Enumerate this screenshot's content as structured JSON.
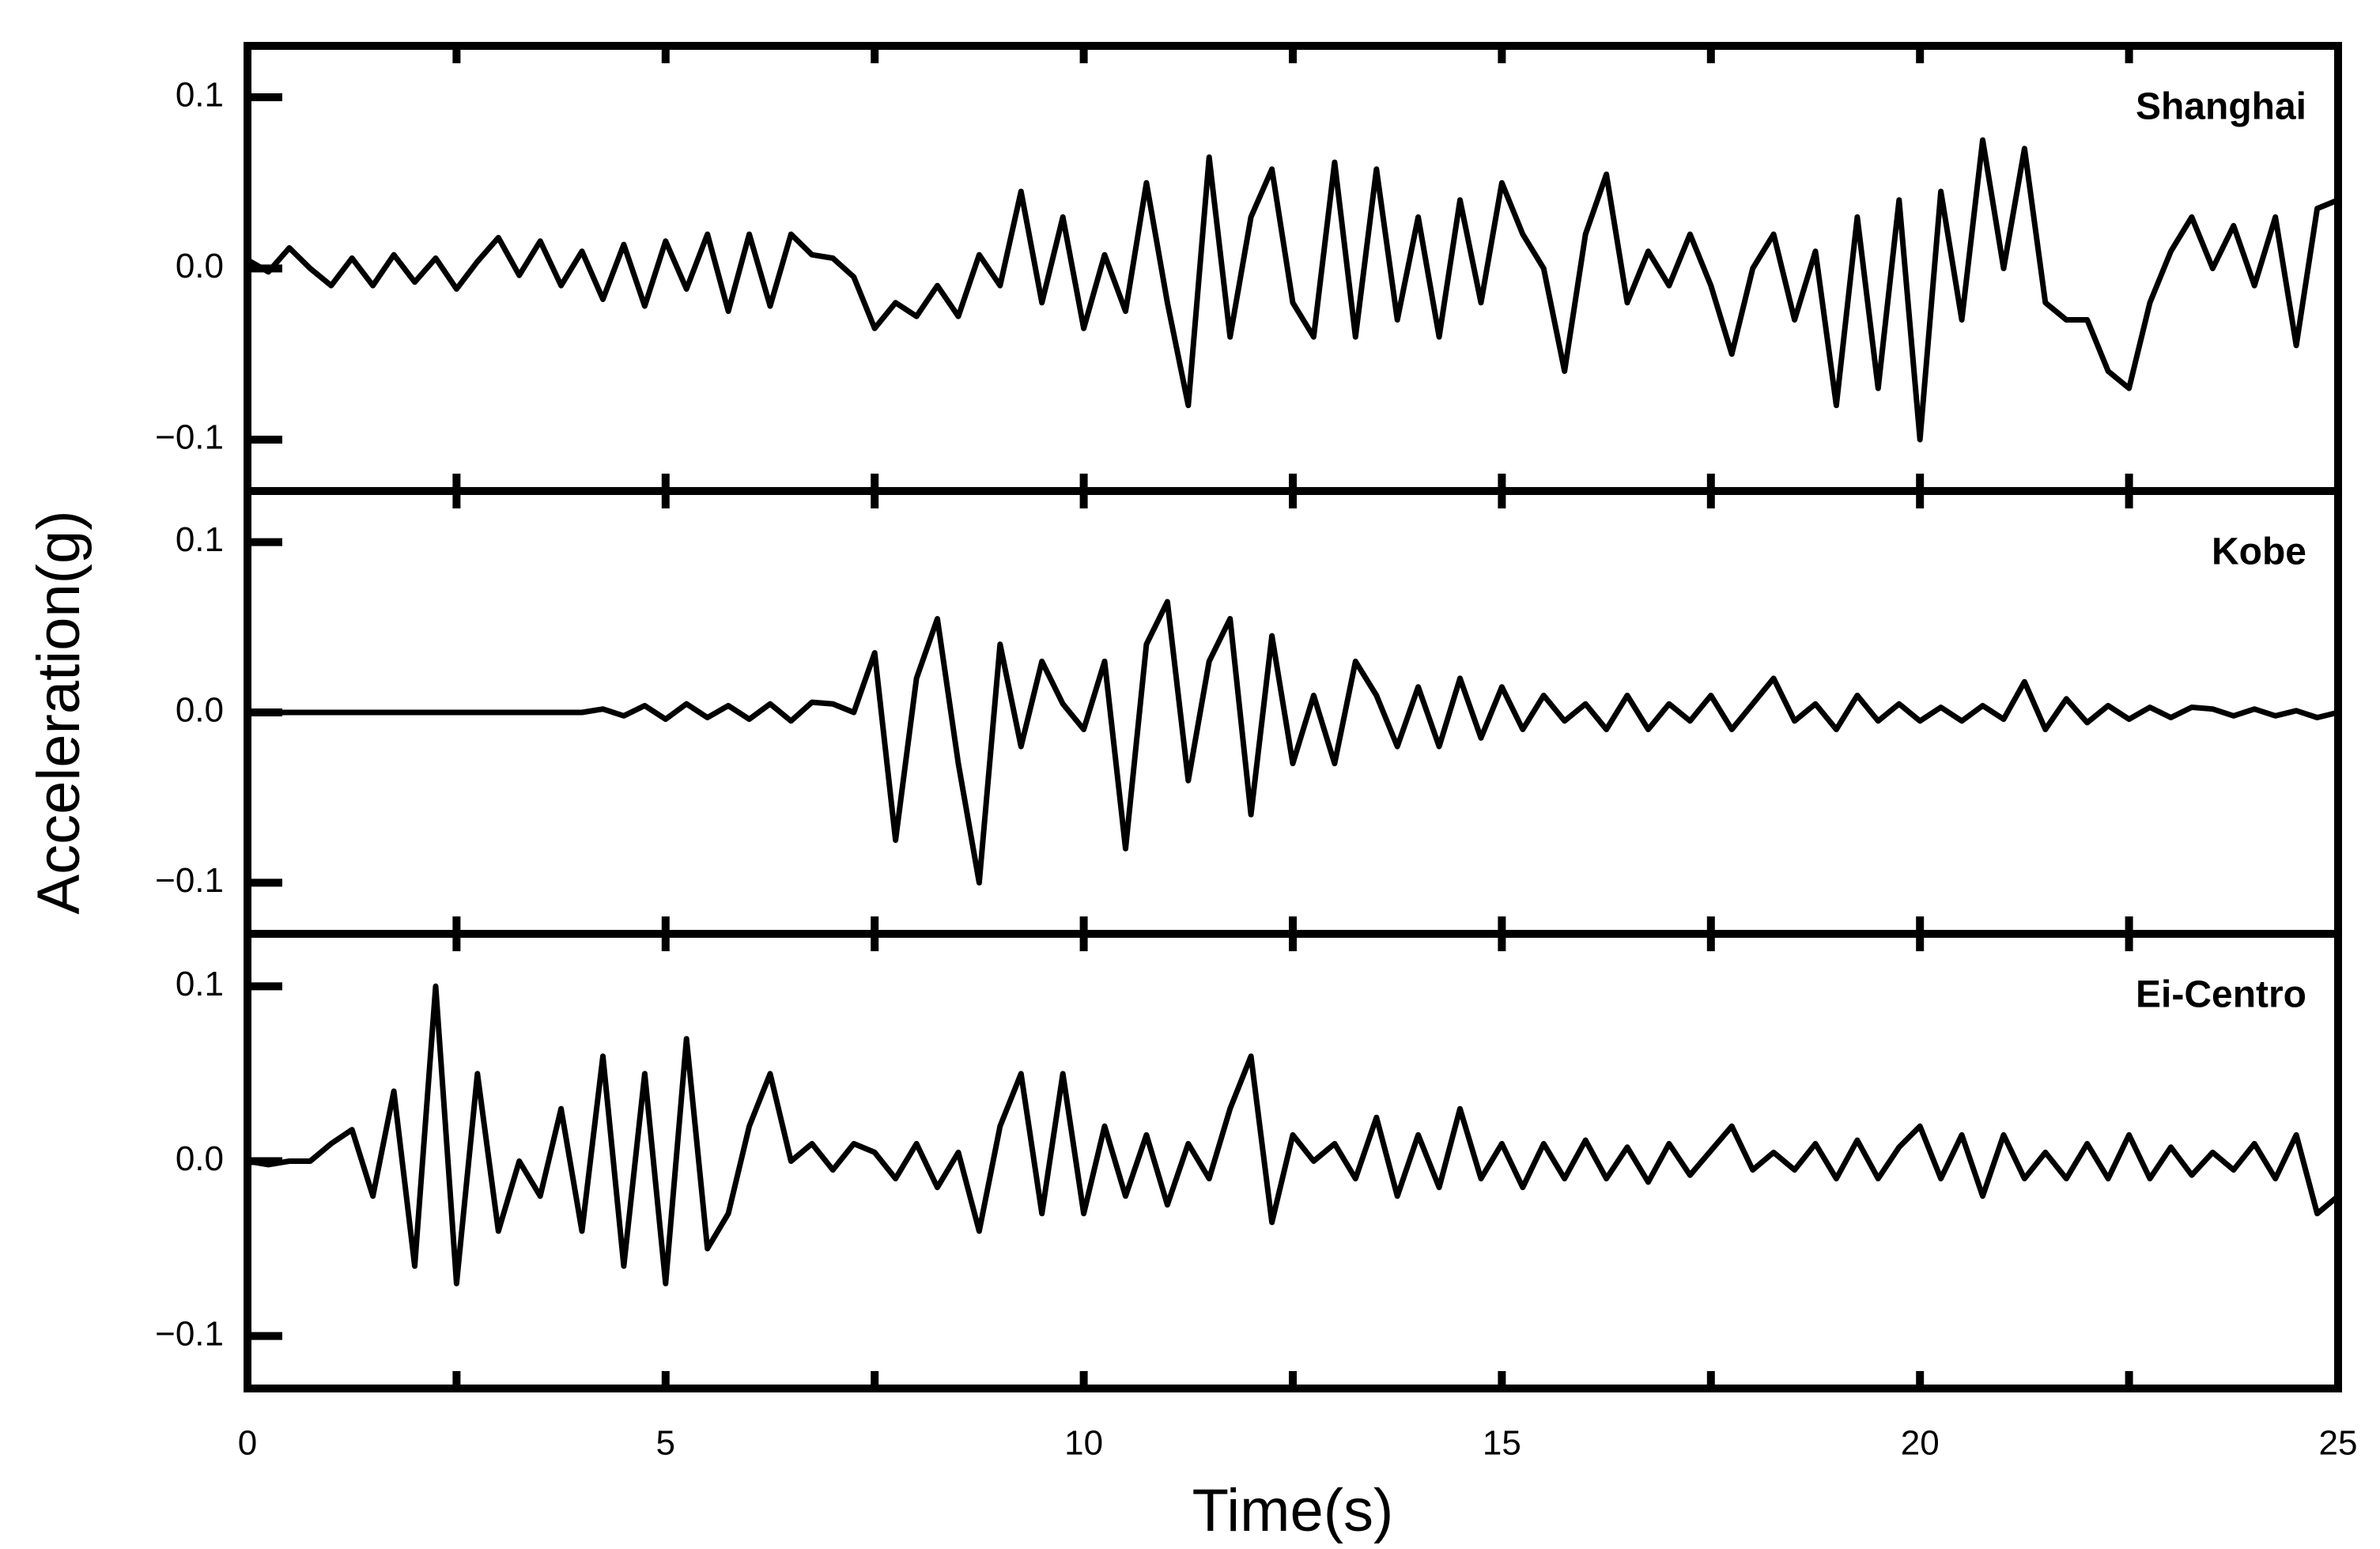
{
  "chart_data": [
    {
      "type": "line",
      "title": "Shanghai",
      "x": [
        0,
        0.25,
        0.5,
        0.75,
        1,
        1.25,
        1.5,
        1.75,
        2,
        2.25,
        2.5,
        2.75,
        3,
        3.25,
        3.5,
        3.75,
        4,
        4.25,
        4.5,
        4.75,
        5,
        5.25,
        5.5,
        5.75,
        6,
        6.25,
        6.5,
        6.75,
        7,
        7.25,
        7.5,
        7.75,
        8,
        8.25,
        8.5,
        8.75,
        9,
        9.25,
        9.5,
        9.75,
        10,
        10.25,
        10.5,
        10.75,
        11,
        11.25,
        11.5,
        11.75,
        12,
        12.25,
        12.5,
        12.75,
        13,
        13.25,
        13.5,
        13.75,
        14,
        14.25,
        14.5,
        14.75,
        15,
        15.25,
        15.5,
        15.75,
        16,
        16.25,
        16.5,
        16.75,
        17,
        17.25,
        17.5,
        17.75,
        18,
        18.25,
        18.5,
        18.75,
        19,
        19.25,
        19.5,
        19.75,
        20,
        20.25,
        20.5,
        20.75,
        21,
        21.25,
        21.5,
        21.75,
        22,
        22.25,
        22.5,
        22.75,
        23,
        23.25,
        23.5,
        23.75,
        24,
        24.25,
        24.5,
        24.75,
        25
      ],
      "values": [
        0.005,
        -0.002,
        0.012,
        0.0,
        -0.01,
        0.006,
        -0.01,
        0.008,
        -0.008,
        0.006,
        -0.012,
        0.004,
        0.018,
        -0.004,
        0.016,
        -0.01,
        0.01,
        -0.018,
        0.014,
        -0.022,
        0.016,
        -0.012,
        0.02,
        -0.025,
        0.02,
        -0.022,
        0.02,
        0.008,
        0.006,
        -0.005,
        -0.035,
        -0.02,
        -0.028,
        -0.01,
        -0.028,
        0.008,
        -0.01,
        0.045,
        -0.02,
        0.03,
        -0.035,
        0.008,
        -0.025,
        0.05,
        -0.02,
        -0.08,
        0.065,
        -0.04,
        0.03,
        0.058,
        -0.02,
        -0.04,
        0.062,
        -0.04,
        0.058,
        -0.03,
        0.03,
        -0.04,
        0.04,
        -0.02,
        0.05,
        0.02,
        0.0,
        -0.06,
        0.02,
        0.055,
        -0.02,
        0.01,
        -0.01,
        0.02,
        -0.01,
        -0.05,
        0.0,
        0.02,
        -0.03,
        0.01,
        -0.08,
        0.03,
        -0.07,
        0.04,
        -0.1,
        0.045,
        -0.03,
        0.075,
        0.0,
        0.07,
        -0.02,
        -0.03,
        -0.03,
        -0.06,
        -0.07,
        -0.02,
        0.01,
        0.03,
        0.0,
        0.025,
        -0.01,
        0.03,
        -0.045,
        0.035,
        0.04
      ],
      "color": "#000000",
      "xlim": [
        0,
        25
      ],
      "xticks": [
        0,
        5,
        10,
        15,
        20,
        25
      ],
      "xminorticks": [
        2.5,
        7.5,
        12.5,
        17.5,
        22.5
      ],
      "ylim": [
        -0.13,
        0.13
      ],
      "yticks": [
        {
          "value": -0.1,
          "label": "−0.1"
        },
        {
          "value": 0,
          "label": "0.0"
        },
        0.1
      ]
    },
    {
      "type": "line",
      "title": "Kobe",
      "ylabel": "Acceleration(g)",
      "x": [
        0,
        0.25,
        0.5,
        0.75,
        1,
        1.25,
        1.5,
        1.75,
        2,
        2.25,
        2.5,
        2.75,
        3,
        3.25,
        3.5,
        3.75,
        4,
        4.25,
        4.5,
        4.75,
        5,
        5.25,
        5.5,
        5.75,
        6,
        6.25,
        6.5,
        6.75,
        7,
        7.25,
        7.5,
        7.75,
        8,
        8.25,
        8.5,
        8.75,
        9,
        9.25,
        9.5,
        9.75,
        10,
        10.25,
        10.5,
        10.75,
        11,
        11.25,
        11.5,
        11.75,
        12,
        12.25,
        12.5,
        12.75,
        13,
        13.25,
        13.5,
        13.75,
        14,
        14.25,
        14.5,
        14.75,
        15,
        15.25,
        15.5,
        15.75,
        16,
        16.25,
        16.5,
        16.75,
        17,
        17.25,
        17.5,
        17.75,
        18,
        18.25,
        18.5,
        18.75,
        19,
        19.25,
        19.5,
        19.75,
        20,
        20.25,
        20.5,
        20.75,
        21,
        21.25,
        21.5,
        21.75,
        22,
        22.25,
        22.5,
        22.75,
        23,
        23.25,
        23.5,
        23.75,
        24,
        24.25,
        24.5,
        24.75,
        25
      ],
      "values": [
        0,
        0,
        0,
        0,
        0,
        0,
        0,
        0,
        0,
        0,
        0,
        0,
        0,
        0,
        0,
        0,
        0.0,
        0.002,
        -0.002,
        0.004,
        -0.004,
        0.005,
        -0.003,
        0.004,
        -0.004,
        0.005,
        -0.005,
        0.006,
        0.005,
        0.0,
        0.035,
        -0.075,
        0.02,
        0.055,
        -0.03,
        -0.1,
        0.04,
        -0.02,
        0.03,
        0.005,
        -0.01,
        0.03,
        -0.08,
        0.04,
        0.065,
        -0.04,
        0.03,
        0.055,
        -0.06,
        0.045,
        -0.03,
        0.01,
        -0.03,
        0.03,
        0.01,
        -0.02,
        0.015,
        -0.02,
        0.02,
        -0.015,
        0.015,
        -0.01,
        0.01,
        -0.005,
        0.005,
        -0.01,
        0.01,
        -0.01,
        0.005,
        -0.005,
        0.01,
        -0.01,
        0.005,
        0.02,
        -0.005,
        0.005,
        -0.01,
        0.01,
        -0.005,
        0.005,
        -0.005,
        0.003,
        -0.005,
        0.004,
        -0.004,
        0.018,
        -0.01,
        0.008,
        -0.006,
        0.004,
        -0.004,
        0.003,
        -0.003,
        0.003,
        0.002,
        -0.002,
        0.002,
        -0.002,
        0.001,
        -0.003,
        0.0
      ],
      "color": "#000000",
      "xlim": [
        0,
        25
      ],
      "xticks": [
        0,
        5,
        10,
        15,
        20,
        25
      ],
      "xminorticks": [
        2.5,
        7.5,
        12.5,
        17.5,
        22.5
      ],
      "ylim": [
        -0.13,
        0.13
      ],
      "yticks": [
        {
          "value": -0.1,
          "label": "−0.1"
        },
        {
          "value": 0,
          "label": "0.0"
        },
        0.1
      ]
    },
    {
      "type": "line",
      "title": "Ei-Centro",
      "xlabel": "Time(s)",
      "x": [
        0,
        0.25,
        0.5,
        0.75,
        1,
        1.25,
        1.5,
        1.75,
        2,
        2.25,
        2.5,
        2.75,
        3,
        3.25,
        3.5,
        3.75,
        4,
        4.25,
        4.5,
        4.75,
        5,
        5.25,
        5.5,
        5.75,
        6,
        6.25,
        6.5,
        6.75,
        7,
        7.25,
        7.5,
        7.75,
        8,
        8.25,
        8.5,
        8.75,
        9,
        9.25,
        9.5,
        9.75,
        10,
        10.25,
        10.5,
        10.75,
        11,
        11.25,
        11.5,
        11.75,
        12,
        12.25,
        12.5,
        12.75,
        13,
        13.25,
        13.5,
        13.75,
        14,
        14.25,
        14.5,
        14.75,
        15,
        15.25,
        15.5,
        15.75,
        16,
        16.25,
        16.5,
        16.75,
        17,
        17.25,
        17.5,
        17.75,
        18,
        18.25,
        18.5,
        18.75,
        19,
        19.25,
        19.5,
        19.75,
        20,
        20.25,
        20.5,
        20.75,
        21,
        21.25,
        21.5,
        21.75,
        22,
        22.25,
        22.5,
        22.75,
        23,
        23.25,
        23.5,
        23.75,
        24,
        24.25,
        24.5,
        24.75,
        25
      ],
      "values": [
        0.0,
        -0.002,
        0.0,
        0.0,
        0.01,
        0.018,
        -0.02,
        0.04,
        -0.06,
        0.1,
        -0.07,
        0.05,
        -0.04,
        0.0,
        -0.02,
        0.03,
        -0.04,
        0.06,
        -0.06,
        0.05,
        -0.07,
        0.07,
        -0.05,
        -0.03,
        0.02,
        0.05,
        0.0,
        0.01,
        -0.005,
        0.01,
        0.005,
        -0.01,
        0.01,
        -0.015,
        0.005,
        -0.04,
        0.02,
        0.05,
        -0.03,
        0.05,
        -0.03,
        0.02,
        -0.02,
        0.015,
        -0.025,
        0.01,
        -0.01,
        0.03,
        0.06,
        -0.035,
        0.015,
        0.0,
        0.01,
        -0.01,
        0.025,
        -0.02,
        0.015,
        -0.015,
        0.03,
        -0.01,
        0.01,
        -0.015,
        0.01,
        -0.01,
        0.012,
        -0.01,
        0.008,
        -0.012,
        0.01,
        -0.008,
        0.006,
        0.02,
        -0.005,
        0.005,
        -0.005,
        0.01,
        -0.01,
        0.012,
        -0.01,
        0.008,
        0.02,
        -0.01,
        0.015,
        -0.02,
        0.015,
        -0.01,
        0.005,
        -0.01,
        0.01,
        -0.01,
        0.015,
        -0.01,
        0.008,
        -0.008,
        0.005,
        -0.005,
        0.01,
        -0.01,
        0.015,
        -0.03,
        -0.02
      ],
      "color": "#000000",
      "xlim": [
        0,
        25
      ],
      "xticks": [
        0,
        5,
        10,
        15,
        20,
        25
      ],
      "xminorticks": [
        2.5,
        7.5,
        12.5,
        17.5,
        22.5
      ],
      "ylim": [
        -0.13,
        0.13
      ],
      "yticks": [
        {
          "value": -0.1,
          "label": "−0.1"
        },
        {
          "value": 0,
          "label": "0.0"
        },
        0.1
      ]
    }
  ]
}
